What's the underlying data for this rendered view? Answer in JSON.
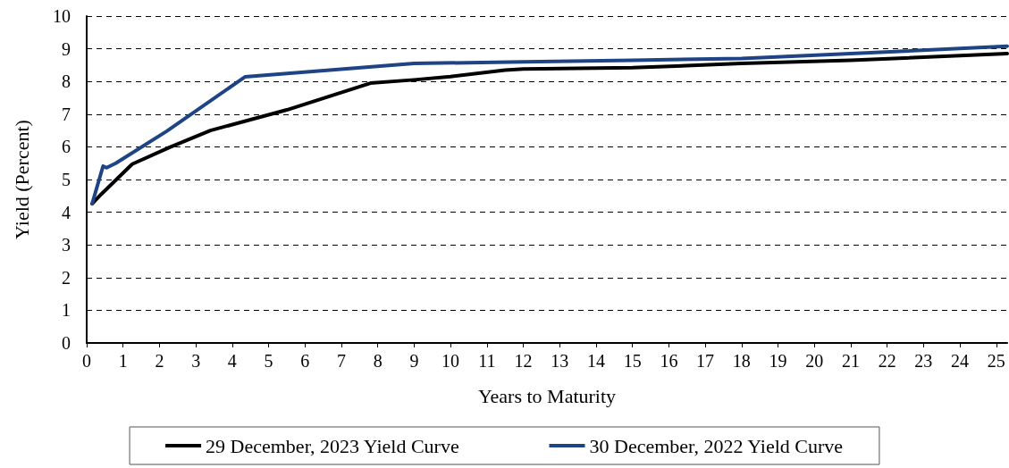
{
  "chart_data": {
    "type": "line",
    "xlabel": "Years to Maturity",
    "ylabel": "Yield (Percent)",
    "xlim": [
      0,
      25.3
    ],
    "xticks": [
      0,
      1,
      2,
      3,
      4,
      5,
      6,
      7,
      8,
      9,
      10,
      11,
      12,
      13,
      14,
      15,
      16,
      17,
      18,
      19,
      20,
      21,
      22,
      23,
      24,
      25
    ],
    "ylim": [
      0,
      10
    ],
    "yticks": [
      0,
      1,
      2,
      3,
      4,
      5,
      6,
      7,
      8,
      9,
      10
    ],
    "grid": "y",
    "legend": "bottom",
    "marker": "none",
    "line_style": "solid",
    "series": [
      {
        "name": "29 December, 2023 Yield Curve",
        "color": "#000000",
        "x": [
          0.15,
          0.4,
          1.25,
          2.27,
          3.4,
          5.5,
          7.8,
          9,
          10,
          11.5,
          12,
          15,
          18,
          21,
          25.3
        ],
        "values": [
          4.26,
          4.55,
          5.47,
          5.98,
          6.5,
          7.13,
          7.95,
          8.05,
          8.15,
          8.35,
          8.38,
          8.42,
          8.55,
          8.65,
          8.85
        ]
      },
      {
        "name": "30 December, 2022 Yield Curve",
        "color": "#1f4485",
        "x": [
          0.15,
          0.45,
          0.55,
          0.8,
          2.2,
          4.35,
          9,
          12,
          15,
          18,
          21,
          25.3
        ],
        "values": [
          4.26,
          5.41,
          5.36,
          5.5,
          6.48,
          8.14,
          8.55,
          8.6,
          8.65,
          8.7,
          8.85,
          9.08
        ]
      }
    ]
  }
}
